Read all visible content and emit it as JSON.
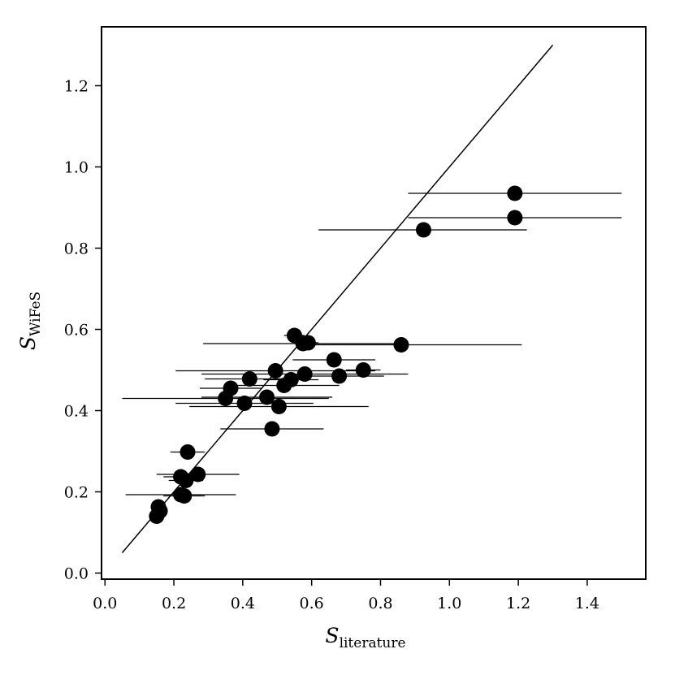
{
  "chart_data": {
    "type": "scatter",
    "title": "",
    "xlabel": {
      "symbol": "S",
      "subscript": "literature"
    },
    "ylabel": {
      "symbol": "S",
      "subscript": "WiFeS"
    },
    "xlim": [
      -0.01,
      1.57
    ],
    "ylim": [
      -0.015,
      1.345
    ],
    "xticks": [
      0.0,
      0.2,
      0.4,
      0.6,
      0.8,
      1.0,
      1.2,
      1.4
    ],
    "xtick_labels": [
      "0.0",
      "0.2",
      "0.4",
      "0.6",
      "0.8",
      "1.0",
      "1.2",
      "1.4"
    ],
    "yticks": [
      0.0,
      0.2,
      0.4,
      0.6,
      0.8,
      1.0,
      1.2
    ],
    "ytick_labels": [
      "0.0",
      "0.2",
      "0.4",
      "0.6",
      "0.8",
      "1.0",
      "1.2"
    ],
    "grid": false,
    "legend": "none",
    "marker_color": "#000000",
    "reference_line": {
      "x": [
        0.05,
        1.3
      ],
      "y": [
        0.05,
        1.3
      ]
    },
    "points": [
      {
        "x": 1.19,
        "y": 0.935,
        "xerr_low": 0.31,
        "xerr_high": 0.31
      },
      {
        "x": 1.19,
        "y": 0.875,
        "xerr_low": 0.31,
        "xerr_high": 0.31
      },
      {
        "x": 0.925,
        "y": 0.845,
        "xerr_low": 0.305,
        "xerr_high": 0.3
      },
      {
        "x": 0.55,
        "y": 0.585,
        "xerr_low": 0.03,
        "xerr_high": 0.03
      },
      {
        "x": 0.575,
        "y": 0.565,
        "xerr_low": 0.29,
        "xerr_high": 0.29
      },
      {
        "x": 0.59,
        "y": 0.567,
        "xerr_low": 0.03,
        "xerr_high": 0.03
      },
      {
        "x": 0.86,
        "y": 0.562,
        "xerr_low": 0.3,
        "xerr_high": 0.35
      },
      {
        "x": 0.665,
        "y": 0.525,
        "xerr_low": 0.12,
        "xerr_high": 0.12
      },
      {
        "x": 0.75,
        "y": 0.5,
        "xerr_low": 0.05,
        "xerr_high": 0.05
      },
      {
        "x": 0.495,
        "y": 0.498,
        "xerr_low": 0.29,
        "xerr_high": 0.29
      },
      {
        "x": 0.58,
        "y": 0.49,
        "xerr_low": 0.3,
        "xerr_high": 0.3
      },
      {
        "x": 0.68,
        "y": 0.485,
        "xerr_low": 0.13,
        "xerr_high": 0.13
      },
      {
        "x": 0.42,
        "y": 0.478,
        "xerr_low": 0.13,
        "xerr_high": 0.13
      },
      {
        "x": 0.54,
        "y": 0.476,
        "xerr_low": 0.08,
        "xerr_high": 0.08
      },
      {
        "x": 0.52,
        "y": 0.462,
        "xerr_low": 0.16,
        "xerr_high": 0.16
      },
      {
        "x": 0.365,
        "y": 0.455,
        "xerr_low": 0.09,
        "xerr_high": 0.09
      },
      {
        "x": 0.47,
        "y": 0.433,
        "xerr_low": 0.19,
        "xerr_high": 0.19
      },
      {
        "x": 0.35,
        "y": 0.43,
        "xerr_low": 0.3,
        "xerr_high": 0.3
      },
      {
        "x": 0.405,
        "y": 0.418,
        "xerr_low": 0.2,
        "xerr_high": 0.2
      },
      {
        "x": 0.505,
        "y": 0.41,
        "xerr_low": 0.26,
        "xerr_high": 0.26
      },
      {
        "x": 0.485,
        "y": 0.355,
        "xerr_low": 0.15,
        "xerr_high": 0.15
      },
      {
        "x": 0.24,
        "y": 0.298,
        "xerr_low": 0.05,
        "xerr_high": 0.05
      },
      {
        "x": 0.27,
        "y": 0.243,
        "xerr_low": 0.12,
        "xerr_high": 0.12
      },
      {
        "x": 0.22,
        "y": 0.237,
        "xerr_low": 0.05,
        "xerr_high": 0.05
      },
      {
        "x": 0.235,
        "y": 0.228,
        "xerr_low": 0.05,
        "xerr_high": 0.05
      },
      {
        "x": 0.22,
        "y": 0.193,
        "xerr_low": 0.16,
        "xerr_high": 0.16
      },
      {
        "x": 0.23,
        "y": 0.19,
        "xerr_low": 0.06,
        "xerr_high": 0.06
      },
      {
        "x": 0.155,
        "y": 0.163,
        "xerr_low": 0.0,
        "xerr_high": 0.0
      },
      {
        "x": 0.16,
        "y": 0.153,
        "xerr_low": 0.0,
        "xerr_high": 0.0
      },
      {
        "x": 0.15,
        "y": 0.14,
        "xerr_low": 0.0,
        "xerr_high": 0.0
      }
    ]
  }
}
